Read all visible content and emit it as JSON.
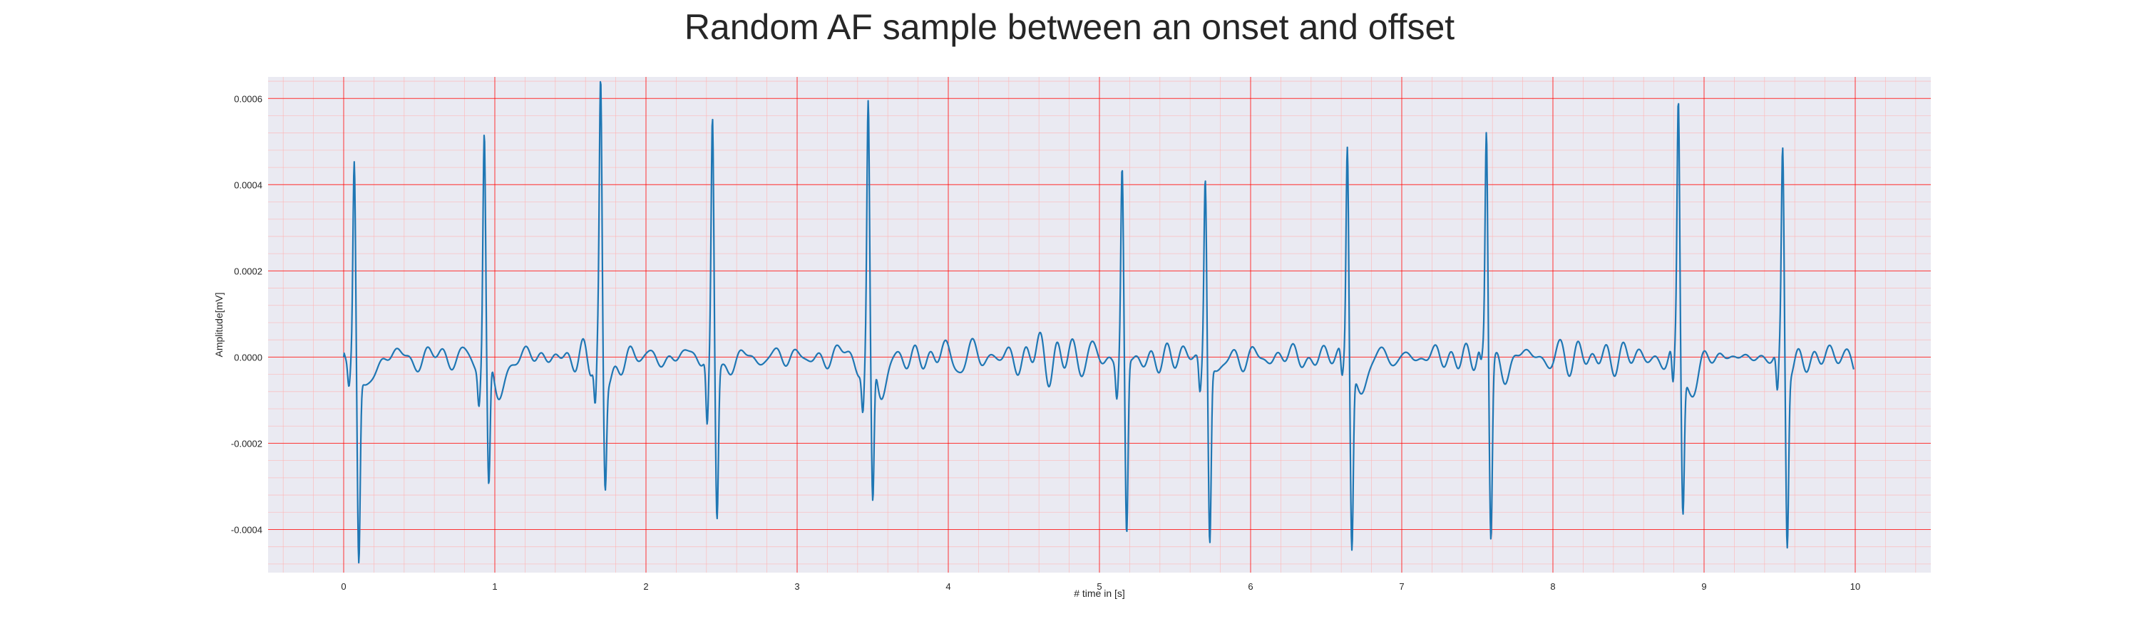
{
  "chart_data": {
    "type": "line",
    "title": "Random AF sample between an onset and offset",
    "xlabel": "# time in [s]",
    "ylabel": "Amplitude[mV]",
    "xlim": [
      -0.5,
      10.5
    ],
    "ylim": [
      -0.0005,
      0.00065
    ],
    "xticks": [
      0,
      1,
      2,
      3,
      4,
      5,
      6,
      7,
      8,
      9,
      10
    ],
    "xtick_labels": [
      "0",
      "1",
      "2",
      "3",
      "4",
      "5",
      "6",
      "7",
      "8",
      "9",
      "10"
    ],
    "yticks": [
      -0.0004,
      -0.0002,
      0.0,
      0.0002,
      0.0004,
      0.0006
    ],
    "ytick_labels": [
      "-0.0004",
      "-0.0002",
      "0.0000",
      "0.0002",
      "0.0004",
      "0.0006"
    ],
    "grid": {
      "major": true,
      "minor": true,
      "major_color": "#ff0000",
      "minor_color": "#ffb0b0"
    },
    "background_color": "#eaeaf2",
    "series": [
      {
        "color": "#1f77b4",
        "beats": [
          {
            "t": 0.07,
            "peak": 0.00046,
            "trough": -0.00044,
            "pre": -6e-05,
            "post": -8e-05
          },
          {
            "t": 0.93,
            "peak": 0.00052,
            "trough": -0.00031,
            "pre": -8e-05,
            "post": -0.0001
          },
          {
            "t": 1.7,
            "peak": 0.0006,
            "trough": -0.00027,
            "pre": -0.00012,
            "post": -4e-05
          },
          {
            "t": 2.44,
            "peak": 0.00056,
            "trough": -0.00035,
            "pre": -0.00016,
            "post": -4e-05
          },
          {
            "t": 3.47,
            "peak": 0.00057,
            "trough": -0.00035,
            "pre": -0.0001,
            "post": -8e-05
          },
          {
            "t": 5.15,
            "peak": 0.00044,
            "trough": -0.00041,
            "pre": -8e-05,
            "post": -2e-05
          },
          {
            "t": 5.7,
            "peak": 0.00043,
            "trough": -0.00041,
            "pre": -8e-05,
            "post": -4e-05
          },
          {
            "t": 6.64,
            "peak": 0.00051,
            "trough": -0.00041,
            "pre": -6e-05,
            "post": -9e-05
          },
          {
            "t": 7.56,
            "peak": 0.00054,
            "trough": -0.00039,
            "pre": -4e-05,
            "post": -4e-05
          },
          {
            "t": 8.83,
            "peak": 0.00058,
            "trough": -0.00033,
            "pre": -0.0001,
            "post": -8e-05
          },
          {
            "t": 9.52,
            "peak": 0.00047,
            "trough": -0.00041,
            "pre": -0.0001,
            "post": -2e-05
          }
        ],
        "t_start": 0.0,
        "t_end": 9.99,
        "baseline_fibrillation_amplitude": 4e-05
      }
    ]
  }
}
